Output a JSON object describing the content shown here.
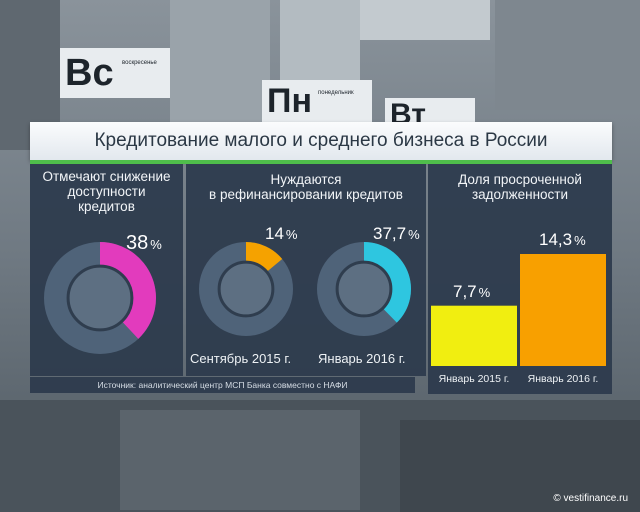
{
  "title": "Кредитование малого и среднего бизнеса в России",
  "background": {
    "tile1_big": "Вс",
    "tile1_small": "воскресенье",
    "tile2_big": "Пн",
    "tile2_small": "понедельник",
    "tile3_big": "Вт"
  },
  "panels": {
    "p1": {
      "title_line1": "Отмечают снижение",
      "title_line2": "доступности",
      "title_line3": "кредитов"
    },
    "p2": {
      "title_line1": "Нуждаются",
      "title_line2": "в рефинансировании кредитов"
    },
    "p3": {
      "title_line1": "Доля просроченной",
      "title_line2": "задолженности"
    }
  },
  "values": {
    "v1": "38",
    "v2": "14",
    "v3": "37,7",
    "v4": "7,7",
    "v5": "14,3",
    "pct": "%"
  },
  "labels": {
    "sep2015": "Сентябрь 2015 г.",
    "jan2016": "Январь 2016 г.",
    "jan2015_small": "Январь 2015 г.",
    "jan2016_small": "Январь 2016 г."
  },
  "source": "Источник: аналитический центр МСП Банка совместно с НАФИ",
  "credit": "© vestifinance.ru",
  "colors": {
    "magenta": "#e23bbd",
    "orange": "#f5a200",
    "cyan": "#2ec6e0",
    "yellow": "#f1ee10",
    "orange_bar": "#f8a000",
    "donut_ring": "#4f6379",
    "green": "#4fbe4b"
  },
  "chart_data": [
    {
      "type": "pie",
      "title": "Отмечают снижение доступности кредитов",
      "values": [
        38
      ],
      "unit": "%"
    },
    {
      "type": "pie",
      "title": "Нуждаются в рефинансировании кредитов",
      "categories": [
        "Сентябрь 2015 г.",
        "Январь 2016 г."
      ],
      "values": [
        14,
        37.7
      ],
      "unit": "%"
    },
    {
      "type": "bar",
      "title": "Доля просроченной задолженности",
      "categories": [
        "Январь 2015 г.",
        "Январь 2016 г."
      ],
      "values": [
        7.7,
        14.3
      ],
      "unit": "%",
      "ylim": [
        0,
        14.3
      ]
    }
  ]
}
